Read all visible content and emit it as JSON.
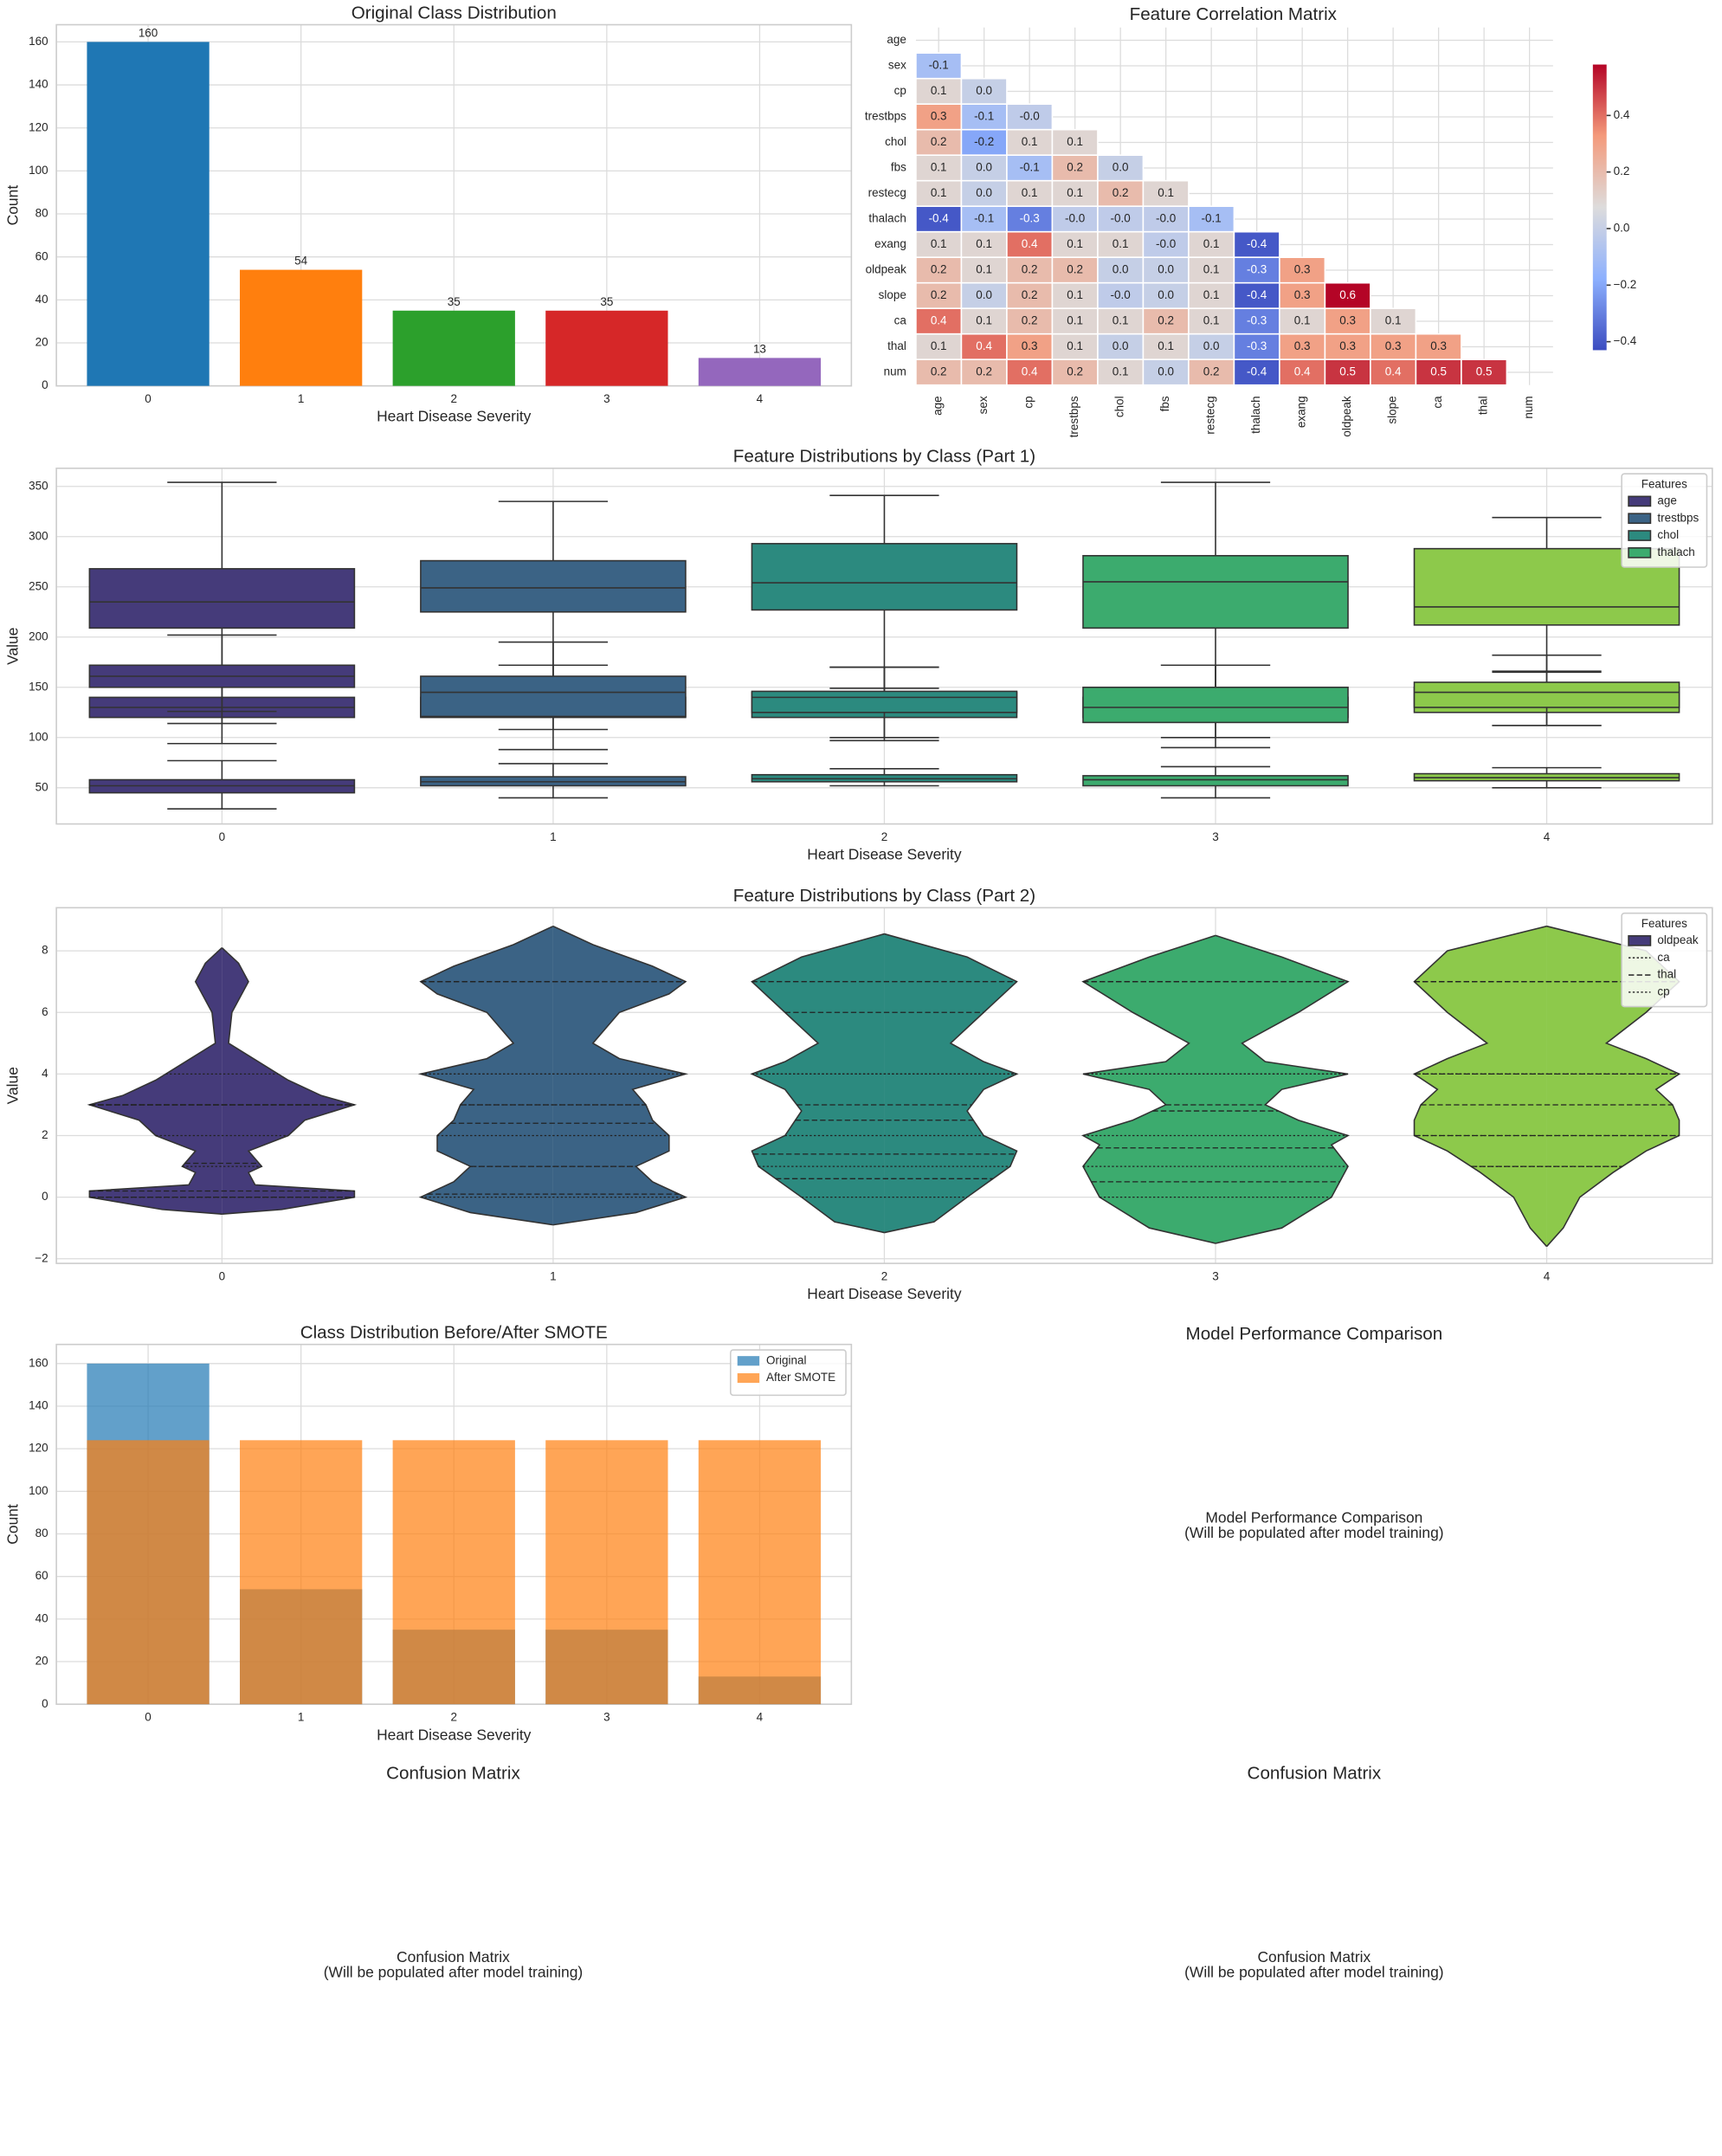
{
  "chart_data": [
    {
      "type": "bar",
      "title": "Original Class Distribution",
      "xlabel": "Heart Disease Severity",
      "ylabel": "Count",
      "categories": [
        "0",
        "1",
        "2",
        "3",
        "4"
      ],
      "values": [
        160,
        54,
        35,
        35,
        13
      ],
      "colors": [
        "#1f77b4",
        "#ff7f0e",
        "#2ca02c",
        "#d62728",
        "#9467bd"
      ],
      "ylim": [
        0,
        168
      ],
      "yticks": [
        0,
        20,
        40,
        60,
        80,
        100,
        120,
        140,
        160
      ],
      "grid": true
    },
    {
      "type": "heatmap",
      "title": "Feature Correlation Matrix",
      "labels": [
        "age",
        "sex",
        "cp",
        "trestbps",
        "chol",
        "fbs",
        "restecg",
        "thalach",
        "exang",
        "oldpeak",
        "slope",
        "ca",
        "thal",
        "num"
      ],
      "values": [
        [],
        [
          -0.1
        ],
        [
          0.1,
          0
        ],
        [
          0.3,
          -0.1,
          -0.02
        ],
        [
          0.2,
          -0.2,
          0.1,
          0.1
        ],
        [
          0.1,
          0,
          -0.1,
          0.2,
          0
        ],
        [
          0.1,
          0,
          0.1,
          0.1,
          0.2,
          0.1
        ],
        [
          -0.4,
          -0.1,
          -0.3,
          -0.02,
          -0.02,
          -0.02,
          -0.1
        ],
        [
          0.1,
          0.1,
          0.4,
          0.1,
          0.1,
          -0.02,
          0.1,
          -0.4
        ],
        [
          0.2,
          0.1,
          0.2,
          0.2,
          0,
          0,
          0.1,
          -0.3,
          0.3
        ],
        [
          0.2,
          0,
          0.2,
          0.1,
          -0.02,
          0,
          0.1,
          -0.4,
          0.3,
          0.6
        ],
        [
          0.4,
          0.1,
          0.2,
          0.1,
          0.1,
          0.2,
          0.1,
          -0.3,
          0.1,
          0.3,
          0.1
        ],
        [
          0.1,
          0.4,
          0.3,
          0.1,
          0,
          0.1,
          0,
          -0.3,
          0.3,
          0.3,
          0.3,
          0.3
        ],
        [
          0.2,
          0.2,
          0.4,
          0.2,
          0.1,
          0,
          0.2,
          -0.4,
          0.4,
          0.5,
          0.4,
          0.5,
          0.5
        ]
      ],
      "value_labels": [
        [],
        [
          "-0.1"
        ],
        [
          "0.1",
          "0.0"
        ],
        [
          "0.3",
          "-0.1",
          "-0.0"
        ],
        [
          "0.2",
          "-0.2",
          "0.1",
          "0.1"
        ],
        [
          "0.1",
          "0.0",
          "-0.1",
          "0.2",
          "0.0"
        ],
        [
          "0.1",
          "0.0",
          "0.1",
          "0.1",
          "0.2",
          "0.1"
        ],
        [
          "-0.4",
          "-0.1",
          "-0.3",
          "-0.0",
          "-0.0",
          "-0.0",
          "-0.1"
        ],
        [
          "0.1",
          "0.1",
          "0.4",
          "0.1",
          "0.1",
          "-0.0",
          "0.1",
          "-0.4"
        ],
        [
          "0.2",
          "0.1",
          "0.2",
          "0.2",
          "0.0",
          "0.0",
          "0.1",
          "-0.3",
          "0.3"
        ],
        [
          "0.2",
          "0.0",
          "0.2",
          "0.1",
          "-0.0",
          "0.0",
          "0.1",
          "-0.4",
          "0.3",
          "0.6"
        ],
        [
          "0.4",
          "0.1",
          "0.2",
          "0.1",
          "0.1",
          "0.2",
          "0.1",
          "-0.3",
          "0.1",
          "0.3",
          "0.1"
        ],
        [
          "0.1",
          "0.4",
          "0.3",
          "0.1",
          "0.0",
          "0.1",
          "0.0",
          "-0.3",
          "0.3",
          "0.3",
          "0.3",
          "0.3"
        ],
        [
          "0.2",
          "0.2",
          "0.4",
          "0.2",
          "0.1",
          "0.0",
          "0.2",
          "-0.4",
          "0.4",
          "0.5",
          "0.4",
          "0.5",
          "0.5"
        ]
      ],
      "clim": [
        -0.43,
        0.58
      ],
      "cticks": [
        {
          "value": -0.4,
          "label": "−0.4"
        },
        {
          "value": -0.2,
          "label": "−0.2"
        },
        {
          "value": 0,
          "label": "0.0"
        },
        0.2,
        0.4
      ]
    },
    {
      "type": "box",
      "title": "Feature Distributions by Class (Part 1)",
      "xlabel": "Heart Disease Severity",
      "ylabel": "Value",
      "categories": [
        "0",
        "1",
        "2",
        "3",
        "4"
      ],
      "ylim": [
        14,
        368
      ],
      "yticks": [
        50,
        100,
        150,
        200,
        250,
        300,
        350
      ],
      "class_colors": [
        "#453b7a",
        "#3b6385",
        "#2c8a7f",
        "#3cab6e",
        "#8dc94b"
      ],
      "legend_title": "Features",
      "series": [
        {
          "name": "age",
          "color": "#453b7a",
          "stats": [
            [
              29,
              45,
              52,
              58,
              77
            ],
            [
              40,
              52,
              56,
              61,
              74
            ],
            [
              52,
              56,
              59,
              63,
              69
            ],
            [
              40,
              52,
              58,
              62,
              71
            ],
            [
              50,
              57,
              60,
              64,
              70
            ]
          ]
        },
        {
          "name": "trestbps",
          "color": "#3b6385",
          "stats": [
            [
              94,
              120,
              130,
              140,
              170
            ],
            [
              108,
              120,
              130,
              140,
              172
            ],
            [
              100,
              120,
              130,
              145,
              170
            ],
            [
              100,
              120,
              130,
              140,
              172
            ],
            [
              112,
              125,
              135,
              150,
              182
            ]
          ]
        },
        {
          "name": "chol",
          "color": "#2c8a7f",
          "stats": [
            [
              126,
              209,
              235,
              268,
              354
            ],
            [
              160,
              225,
              249,
              276,
              335
            ],
            [
              149,
              227,
              254,
              293,
              341
            ],
            [
              149,
              209,
              255,
              281,
              354
            ],
            [
              166,
              212,
              230,
              288,
              319
            ]
          ]
        },
        {
          "name": "thalach",
          "color": "#3cab6e",
          "stats": [
            [
              114,
              150,
              161,
              172,
              202
            ],
            [
              88,
              121,
              145,
              161,
              195
            ],
            [
              97,
              125,
              140,
              146,
              170
            ],
            [
              90,
              115,
              130,
              150,
              172
            ],
            [
              112,
              130,
              145,
              155,
              165
            ]
          ]
        }
      ]
    },
    {
      "type": "violin",
      "title": "Feature Distributions by Class (Part 2)",
      "xlabel": "Heart Disease Severity",
      "ylabel": "Value",
      "categories": [
        "0",
        "1",
        "2",
        "3",
        "4"
      ],
      "ylim": [
        -2.15,
        9.4
      ],
      "yticks": [
        {
          "value": -2,
          "label": "−2"
        },
        0,
        2,
        4,
        6,
        8
      ],
      "class_colors": [
        "#453b7a",
        "#3b6385",
        "#2c8a7f",
        "#3cab6e",
        "#8dc94b"
      ],
      "legend_title": "Features",
      "violins": [
        {
          "y": [
            -0.55,
            -0.4,
            0,
            0.2,
            0.4,
            0.8,
            1.0,
            1.5,
            2.0,
            2.5,
            3.0,
            3.3,
            3.8,
            4.2,
            4.6,
            5.0,
            6.0,
            7.0,
            7.6,
            8.1
          ],
          "width": [
            0,
            0.18,
            0.4,
            0.4,
            0.1,
            0.08,
            0.12,
            0.08,
            0.2,
            0.25,
            0.4,
            0.3,
            0.2,
            0.14,
            0.08,
            0.02,
            0.03,
            0.08,
            0.05,
            0
          ]
        },
        {
          "y": [
            -0.9,
            -0.5,
            0,
            0.5,
            1.0,
            1.5,
            2,
            2.5,
            3.0,
            3.5,
            4.0,
            4.5,
            5,
            6,
            6.6,
            7,
            7.5,
            8.2,
            8.8
          ],
          "width": [
            0,
            0.25,
            0.4,
            0.3,
            0.25,
            0.35,
            0.35,
            0.3,
            0.28,
            0.24,
            0.4,
            0.2,
            0.12,
            0.2,
            0.35,
            0.4,
            0.3,
            0.12,
            0
          ]
        },
        {
          "y": [
            -1.15,
            -0.8,
            0,
            1,
            1.5,
            2,
            2.8,
            3.5,
            4,
            4.4,
            5,
            6,
            7,
            7.8,
            8.55
          ],
          "width": [
            0,
            0.15,
            0.25,
            0.38,
            0.4,
            0.3,
            0.25,
            0.3,
            0.4,
            0.3,
            0.2,
            0.3,
            0.4,
            0.25,
            0
          ]
        },
        {
          "y": [
            -1.5,
            -1,
            0,
            1,
            1.7,
            2,
            2.5,
            3,
            3.5,
            4,
            4.4,
            5,
            6,
            7,
            7.8,
            8.5
          ],
          "width": [
            0,
            0.2,
            0.35,
            0.4,
            0.35,
            0.4,
            0.25,
            0.15,
            0.2,
            0.4,
            0.15,
            0.08,
            0.25,
            0.4,
            0.2,
            0
          ]
        },
        {
          "y": [
            -1.6,
            -1,
            0,
            0.8,
            1.5,
            2,
            2.5,
            3,
            3.5,
            4,
            4.5,
            5,
            6,
            7,
            8,
            8.8
          ],
          "width": [
            0,
            0.05,
            0.1,
            0.2,
            0.3,
            0.4,
            0.4,
            0.38,
            0.33,
            0.4,
            0.3,
            0.18,
            0.3,
            0.4,
            0.3,
            0
          ]
        }
      ],
      "series": [
        {
          "name": "oldpeak",
          "color": "#453b7a",
          "quartiles": [
            [
              0,
              0.2,
              1.1
            ],
            [
              0.1,
              1.0,
              2.4
            ],
            [
              0.6,
              1.4,
              2.5
            ],
            [
              0.5,
              1.6,
              2.8
            ],
            [
              1.0,
              2.0,
              3.0
            ]
          ]
        },
        {
          "name": "ca",
          "color": "#333333",
          "dash": "dotted",
          "quartiles": [
            [
              0,
              0,
              1
            ],
            [
              0,
              1,
              2
            ],
            [
              0,
              1,
              2
            ],
            [
              0,
              1,
              2
            ],
            [
              1,
              1,
              2
            ]
          ]
        },
        {
          "name": "thal",
          "color": "#333333",
          "dash": "dashed",
          "quartiles": [
            [
              3,
              3,
              3
            ],
            [
              3,
              7,
              7
            ],
            [
              3,
              6,
              7
            ],
            [
              3,
              7,
              7
            ],
            [
              4,
              7,
              7
            ]
          ]
        },
        {
          "name": "cp",
          "color": "#333333",
          "dash": "dotted",
          "quartiles": [
            [
              2,
              3,
              4
            ],
            [
              3,
              4,
              4
            ],
            [
              4,
              4,
              4
            ],
            [
              4,
              4,
              4
            ],
            [
              4,
              4,
              4
            ]
          ]
        }
      ]
    },
    {
      "type": "bar",
      "title": "Class Distribution Before/After SMOTE",
      "xlabel": "Heart Disease Severity",
      "ylabel": "Count",
      "categories": [
        "0",
        "1",
        "2",
        "3",
        "4"
      ],
      "alpha": 0.7,
      "series": [
        {
          "name": "Original",
          "color": "#1f77b4",
          "values": [
            160,
            54,
            35,
            35,
            13
          ]
        },
        {
          "name": "After SMOTE",
          "color": "#ff7f0e",
          "values": [
            124,
            124,
            124,
            124,
            124
          ]
        }
      ],
      "ylim": [
        0,
        169
      ],
      "yticks": [
        0,
        20,
        40,
        60,
        80,
        100,
        120,
        140,
        160
      ],
      "grid": true
    },
    {
      "type": "text",
      "title": "Model Performance Comparison",
      "message": [
        "Model Performance Comparison",
        "(Will be populated after model training)"
      ]
    },
    {
      "type": "text",
      "title": "Confusion Matrix",
      "message": [
        "Confusion Matrix",
        "(Will be populated after model training)"
      ]
    },
    {
      "type": "text",
      "title": "Confusion Matrix",
      "message": [
        "Confusion Matrix",
        "(Will be populated after model training)"
      ]
    }
  ]
}
